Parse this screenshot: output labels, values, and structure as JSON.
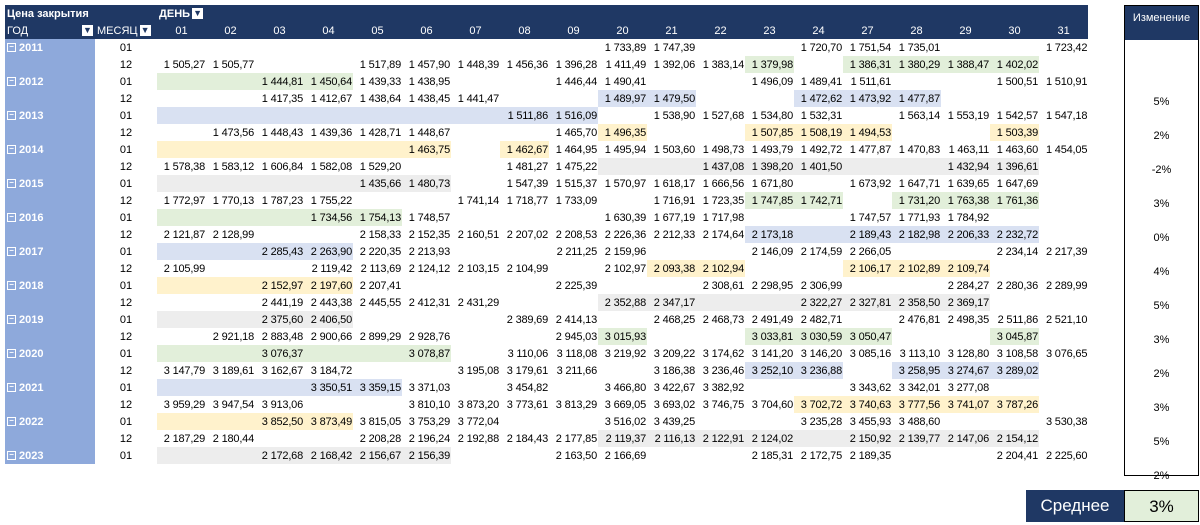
{
  "header": {
    "title": "Цена закрытия",
    "day_label": "ДЕНЬ",
    "year_label": "ГОД",
    "month_label": "МЕСЯЦ",
    "filter_icon": "filter-icon",
    "days": [
      "01",
      "02",
      "03",
      "04",
      "05",
      "06",
      "07",
      "08",
      "09",
      "20",
      "21",
      "22",
      "23",
      "24",
      "27",
      "28",
      "29",
      "30",
      "31"
    ]
  },
  "rows": [
    {
      "year": "2011",
      "month": "01",
      "cells": [
        "",
        "",
        "",
        "",
        "",
        "",
        "",
        "",
        "",
        "1 733,89",
        "1 747,39",
        "",
        "",
        "1 720,70",
        "1 751,54",
        "1 735,01",
        "",
        "",
        "1 723,42"
      ],
      "bg": [
        "w",
        "w",
        "w",
        "w",
        "w",
        "w",
        "w",
        "w",
        "w",
        "w",
        "w",
        "w",
        "w",
        "w",
        "w",
        "w",
        "w",
        "w",
        "w"
      ]
    },
    {
      "year": "",
      "month": "12",
      "cells": [
        "1 505,27",
        "1 505,77",
        "",
        "",
        "1 517,89",
        "1 457,90",
        "1 448,39",
        "1 456,36",
        "1 396,28",
        "1 411,49",
        "1 392,06",
        "1 383,14",
        "1 379,98",
        "",
        "1 386,31",
        "1 380,29",
        "1 388,47",
        "1 402,02",
        ""
      ],
      "bg": [
        "w",
        "w",
        "w",
        "w",
        "w",
        "w",
        "w",
        "w",
        "w",
        "w",
        "w",
        "w",
        "g",
        "w",
        "g",
        "g",
        "g",
        "g",
        "w"
      ]
    },
    {
      "year": "2012",
      "month": "01",
      "cells": [
        "",
        "",
        "1 444,81",
        "1 450,64",
        "1 439,33",
        "1 438,95",
        "",
        "",
        "1 446,44",
        "1 490,41",
        "",
        "",
        "1 496,09",
        "1 489,41",
        "1 511,61",
        "",
        "",
        "1 500,51",
        "1 510,91"
      ],
      "bg": [
        "g",
        "g",
        "g",
        "g",
        "w",
        "w",
        "w",
        "w",
        "w",
        "w",
        "w",
        "w",
        "w",
        "w",
        "w",
        "w",
        "w",
        "w",
        "w"
      ]
    },
    {
      "year": "",
      "month": "12",
      "cells": [
        "",
        "",
        "1 417,35",
        "1 412,67",
        "1 438,64",
        "1 438,45",
        "1 441,47",
        "",
        "",
        "1 489,97",
        "1 479,50",
        "",
        "",
        "1 472,62",
        "1 473,92",
        "1 477,87",
        "",
        "",
        ""
      ],
      "bg": [
        "w",
        "w",
        "w",
        "w",
        "w",
        "w",
        "w",
        "w",
        "w",
        "b",
        "b",
        "w",
        "w",
        "b",
        "b",
        "b",
        "w",
        "w",
        "w"
      ]
    },
    {
      "year": "2013",
      "month": "01",
      "cells": [
        "",
        "",
        "",
        "",
        "",
        "",
        "",
        "1 511,86",
        "1 516,09",
        "",
        "1 538,90",
        "1 527,68",
        "1 534,80",
        "1 532,31",
        "",
        "1 563,14",
        "1 553,19",
        "1 542,57",
        "1 547,18"
      ],
      "bg": [
        "b",
        "b",
        "b",
        "b",
        "b",
        "b",
        "b",
        "b",
        "b",
        "w",
        "w",
        "w",
        "w",
        "w",
        "w",
        "w",
        "w",
        "w",
        "w"
      ]
    },
    {
      "year": "",
      "month": "12",
      "cells": [
        "",
        "1 473,56",
        "1 448,43",
        "1 439,36",
        "1 428,71",
        "1 448,67",
        "",
        "",
        "1 465,70",
        "1 496,35",
        "",
        "",
        "1 507,85",
        "1 508,19",
        "1 494,53",
        "",
        "",
        "1 503,39",
        ""
      ],
      "bg": [
        "w",
        "w",
        "w",
        "w",
        "w",
        "w",
        "w",
        "w",
        "w",
        "y",
        "w",
        "w",
        "y",
        "y",
        "y",
        "w",
        "w",
        "y",
        "w"
      ]
    },
    {
      "year": "2014",
      "month": "01",
      "cells": [
        "",
        "",
        "",
        "",
        "",
        "1 463,75",
        "",
        "1 462,67",
        "1 464,95",
        "1 495,94",
        "1 503,60",
        "1 498,73",
        "1 493,79",
        "1 492,72",
        "1 477,87",
        "1 470,83",
        "1 463,11",
        "1 463,60",
        "1 454,05"
      ],
      "bg": [
        "y",
        "y",
        "y",
        "y",
        "y",
        "y",
        "w",
        "y",
        "w",
        "w",
        "w",
        "w",
        "w",
        "w",
        "w",
        "w",
        "w",
        "w",
        "w"
      ]
    },
    {
      "year": "",
      "month": "12",
      "cells": [
        "1 578,38",
        "1 583,12",
        "1 606,84",
        "1 582,08",
        "1 529,20",
        "",
        "",
        "1 481,27",
        "1 475,22",
        "",
        "",
        "1 437,08",
        "1 398,20",
        "1 401,50",
        "",
        "",
        "1 432,94",
        "1 396,61",
        ""
      ],
      "bg": [
        "w",
        "w",
        "w",
        "w",
        "w",
        "w",
        "w",
        "w",
        "w",
        "x",
        "x",
        "x",
        "x",
        "x",
        "x",
        "x",
        "x",
        "x",
        "w"
      ]
    },
    {
      "year": "2015",
      "month": "01",
      "cells": [
        "",
        "",
        "",
        "",
        "1 435,66",
        "1 480,73",
        "",
        "1 547,39",
        "1 515,37",
        "1 570,97",
        "1 618,17",
        "1 666,56",
        "1 671,80",
        "",
        "1 673,92",
        "1 647,71",
        "1 639,65",
        "1 647,69",
        ""
      ],
      "bg": [
        "x",
        "x",
        "x",
        "x",
        "x",
        "x",
        "w",
        "w",
        "w",
        "w",
        "w",
        "w",
        "w",
        "w",
        "w",
        "w",
        "w",
        "w",
        "w"
      ]
    },
    {
      "year": "",
      "month": "12",
      "cells": [
        "1 772,97",
        "1 770,13",
        "1 787,23",
        "1 755,22",
        "",
        "",
        "1 741,14",
        "1 718,77",
        "1 733,09",
        "",
        "1 716,91",
        "1 723,35",
        "1 747,85",
        "1 742,71",
        "",
        "1 731,20",
        "1 763,38",
        "1 761,36",
        ""
      ],
      "bg": [
        "w",
        "w",
        "w",
        "w",
        "w",
        "w",
        "w",
        "w",
        "w",
        "w",
        "w",
        "w",
        "g",
        "g",
        "w",
        "g",
        "g",
        "g",
        "w"
      ]
    },
    {
      "year": "2016",
      "month": "01",
      "cells": [
        "",
        "",
        "",
        "1 734,56",
        "1 754,13",
        "1 748,57",
        "",
        "",
        "",
        "1 630,39",
        "1 677,19",
        "1 717,98",
        "",
        "",
        "1 747,57",
        "1 771,93",
        "1 784,92",
        "",
        ""
      ],
      "bg": [
        "g",
        "g",
        "g",
        "g",
        "g",
        "w",
        "w",
        "w",
        "w",
        "w",
        "w",
        "w",
        "w",
        "w",
        "w",
        "w",
        "w",
        "w",
        "w"
      ]
    },
    {
      "year": "",
      "month": "12",
      "cells": [
        "2 121,87",
        "2 128,99",
        "",
        "",
        "2 158,33",
        "2 152,35",
        "2 160,51",
        "2 207,02",
        "2 208,53",
        "2 226,36",
        "2 212,33",
        "2 174,64",
        "2 173,18",
        "",
        "2 189,43",
        "2 182,98",
        "2 206,33",
        "2 232,72",
        ""
      ],
      "bg": [
        "w",
        "w",
        "w",
        "w",
        "w",
        "w",
        "w",
        "w",
        "w",
        "w",
        "w",
        "w",
        "b",
        "b",
        "b",
        "b",
        "b",
        "b",
        "w"
      ]
    },
    {
      "year": "2017",
      "month": "01",
      "cells": [
        "",
        "",
        "2 285,43",
        "2 263,90",
        "2 220,35",
        "2 213,93",
        "",
        "",
        "2 211,25",
        "2 159,96",
        "",
        "",
        "2 146,09",
        "2 174,59",
        "2 266,05",
        "",
        "",
        "2 234,14",
        "2 217,39"
      ],
      "bg": [
        "b",
        "b",
        "b",
        "b",
        "w",
        "w",
        "w",
        "w",
        "w",
        "w",
        "w",
        "w",
        "w",
        "w",
        "w",
        "w",
        "w",
        "w",
        "w"
      ]
    },
    {
      "year": "",
      "month": "12",
      "cells": [
        "2 105,99",
        "",
        "",
        "2 119,42",
        "2 113,69",
        "2 124,12",
        "2 103,15",
        "2 104,99",
        "",
        "2 102,97",
        "2 093,38",
        "2 102,94",
        "",
        "",
        "2 106,17",
        "2 102,89",
        "2 109,74",
        "",
        ""
      ],
      "bg": [
        "w",
        "w",
        "w",
        "w",
        "w",
        "w",
        "w",
        "w",
        "w",
        "w",
        "y",
        "y",
        "w",
        "w",
        "y",
        "y",
        "y",
        "w",
        "w"
      ]
    },
    {
      "year": "2018",
      "month": "01",
      "cells": [
        "",
        "",
        "2 152,97",
        "2 197,60",
        "2 207,41",
        "",
        "",
        "",
        "2 225,39",
        "",
        "",
        "2 308,61",
        "2 298,95",
        "2 306,99",
        "",
        "",
        "2 284,27",
        "2 280,36",
        "2 289,99"
      ],
      "bg": [
        "y",
        "y",
        "y",
        "y",
        "w",
        "w",
        "w",
        "w",
        "w",
        "w",
        "w",
        "w",
        "w",
        "w",
        "w",
        "w",
        "w",
        "w",
        "w"
      ]
    },
    {
      "year": "",
      "month": "12",
      "cells": [
        "",
        "",
        "2 441,19",
        "2 443,38",
        "2 445,55",
        "2 412,31",
        "2 431,29",
        "",
        "",
        "2 352,88",
        "2 347,17",
        "",
        "",
        "2 322,27",
        "2 327,81",
        "2 358,50",
        "2 369,17",
        "",
        ""
      ],
      "bg": [
        "w",
        "w",
        "w",
        "w",
        "w",
        "w",
        "w",
        "w",
        "w",
        "x",
        "x",
        "x",
        "x",
        "x",
        "x",
        "x",
        "x",
        "w",
        "w"
      ]
    },
    {
      "year": "2019",
      "month": "01",
      "cells": [
        "",
        "",
        "2 375,60",
        "2 406,50",
        "",
        "",
        "",
        "2 389,69",
        "2 414,13",
        "",
        "2 468,25",
        "2 468,73",
        "2 491,49",
        "2 482,71",
        "",
        "2 476,81",
        "2 498,35",
        "2 511,86",
        "2 521,10"
      ],
      "bg": [
        "x",
        "x",
        "x",
        "x",
        "w",
        "w",
        "w",
        "w",
        "w",
        "w",
        "w",
        "w",
        "w",
        "w",
        "w",
        "w",
        "w",
        "w",
        "w"
      ]
    },
    {
      "year": "",
      "month": "12",
      "cells": [
        "",
        "2 921,18",
        "2 883,48",
        "2 900,66",
        "2 899,29",
        "2 928,76",
        "",
        "",
        "2 945,03",
        "3 015,93",
        "",
        "",
        "3 033,81",
        "3 030,59",
        "3 050,47",
        "",
        "",
        "3 045,87",
        ""
      ],
      "bg": [
        "w",
        "w",
        "w",
        "w",
        "w",
        "w",
        "w",
        "w",
        "w",
        "g",
        "w",
        "w",
        "g",
        "g",
        "g",
        "w",
        "w",
        "g",
        "w"
      ]
    },
    {
      "year": "2020",
      "month": "01",
      "cells": [
        "",
        "",
        "3 076,37",
        "",
        "",
        "3 078,87",
        "",
        "3 110,06",
        "3 118,08",
        "3 219,92",
        "3 209,22",
        "3 174,62",
        "3 141,20",
        "3 146,20",
        "3 085,16",
        "3 113,10",
        "3 128,80",
        "3 108,58",
        "3 076,65"
      ],
      "bg": [
        "g",
        "g",
        "g",
        "g",
        "g",
        "g",
        "w",
        "w",
        "w",
        "w",
        "w",
        "w",
        "w",
        "w",
        "w",
        "w",
        "w",
        "w",
        "w"
      ]
    },
    {
      "year": "",
      "month": "12",
      "cells": [
        "3 147,79",
        "3 189,61",
        "3 162,67",
        "3 184,72",
        "",
        "",
        "3 195,08",
        "3 179,61",
        "3 211,66",
        "",
        "3 186,38",
        "3 236,46",
        "3 252,10",
        "3 236,88",
        "",
        "3 258,95",
        "3 274,67",
        "3 289,02",
        ""
      ],
      "bg": [
        "w",
        "w",
        "w",
        "w",
        "w",
        "w",
        "w",
        "w",
        "w",
        "w",
        "w",
        "w",
        "b",
        "b",
        "w",
        "b",
        "b",
        "b",
        "w"
      ]
    },
    {
      "year": "2021",
      "month": "01",
      "cells": [
        "",
        "",
        "",
        "3 350,51",
        "3 359,15",
        "3 371,03",
        "",
        "3 454,82",
        "",
        "3 466,80",
        "3 422,67",
        "3 382,92",
        "",
        "",
        "3 343,62",
        "3 342,01",
        "3 277,08",
        "",
        ""
      ],
      "bg": [
        "b",
        "b",
        "b",
        "b",
        "b",
        "w",
        "w",
        "w",
        "w",
        "w",
        "w",
        "w",
        "w",
        "w",
        "w",
        "w",
        "w",
        "w",
        "w"
      ]
    },
    {
      "year": "",
      "month": "12",
      "cells": [
        "3 959,29",
        "3 947,54",
        "3 913,06",
        "",
        "",
        "3 810,10",
        "3 873,20",
        "3 773,61",
        "3 813,29",
        "3 669,05",
        "3 693,02",
        "3 746,75",
        "3 704,60",
        "3 702,72",
        "3 740,63",
        "3 777,56",
        "3 741,07",
        "3 787,26",
        ""
      ],
      "bg": [
        "w",
        "w",
        "w",
        "w",
        "w",
        "w",
        "w",
        "w",
        "w",
        "w",
        "w",
        "w",
        "w",
        "y",
        "y",
        "y",
        "y",
        "y",
        "w"
      ]
    },
    {
      "year": "2022",
      "month": "01",
      "cells": [
        "",
        "",
        "3 852,50",
        "3 873,49",
        "3 815,05",
        "3 753,29",
        "3 772,04",
        "",
        "",
        "3 516,02",
        "3 439,25",
        "",
        "",
        "3 235,28",
        "3 455,93",
        "3 488,60",
        "",
        "",
        "3 530,38"
      ],
      "bg": [
        "y",
        "y",
        "y",
        "y",
        "w",
        "w",
        "w",
        "w",
        "w",
        "w",
        "w",
        "w",
        "w",
        "w",
        "w",
        "w",
        "w",
        "w",
        "w"
      ]
    },
    {
      "year": "",
      "month": "12",
      "cells": [
        "2 187,29",
        "2 180,44",
        "",
        "",
        "2 208,28",
        "2 196,24",
        "2 192,88",
        "2 184,43",
        "2 177,85",
        "2 119,37",
        "2 116,13",
        "2 122,91",
        "2 124,02",
        "",
        "2 150,92",
        "2 139,77",
        "2 147,06",
        "2 154,12",
        ""
      ],
      "bg": [
        "w",
        "w",
        "w",
        "w",
        "w",
        "w",
        "w",
        "w",
        "w",
        "x",
        "x",
        "x",
        "x",
        "x",
        "x",
        "x",
        "x",
        "x",
        "w"
      ]
    },
    {
      "year": "2023",
      "month": "01",
      "cells": [
        "",
        "",
        "2 172,68",
        "2 168,42",
        "2 156,67",
        "2 156,39",
        "",
        "",
        "2 163,50",
        "2 166,69",
        "",
        "",
        "2 185,31",
        "2 172,75",
        "2 189,35",
        "",
        "",
        "2 204,41",
        "2 225,60"
      ],
      "bg": [
        "x",
        "x",
        "x",
        "x",
        "x",
        "x",
        "w",
        "w",
        "w",
        "w",
        "w",
        "w",
        "w",
        "w",
        "w",
        "w",
        "w",
        "w",
        "w"
      ]
    }
  ],
  "change": {
    "header": "Изменение",
    "values": [
      "",
      "5%",
      "2%",
      "-2%",
      "3%",
      "0%",
      "4%",
      "5%",
      "3%",
      "2%",
      "3%",
      "5%",
      "2%"
    ]
  },
  "average": {
    "label": "Среднее",
    "value": "3%"
  }
}
